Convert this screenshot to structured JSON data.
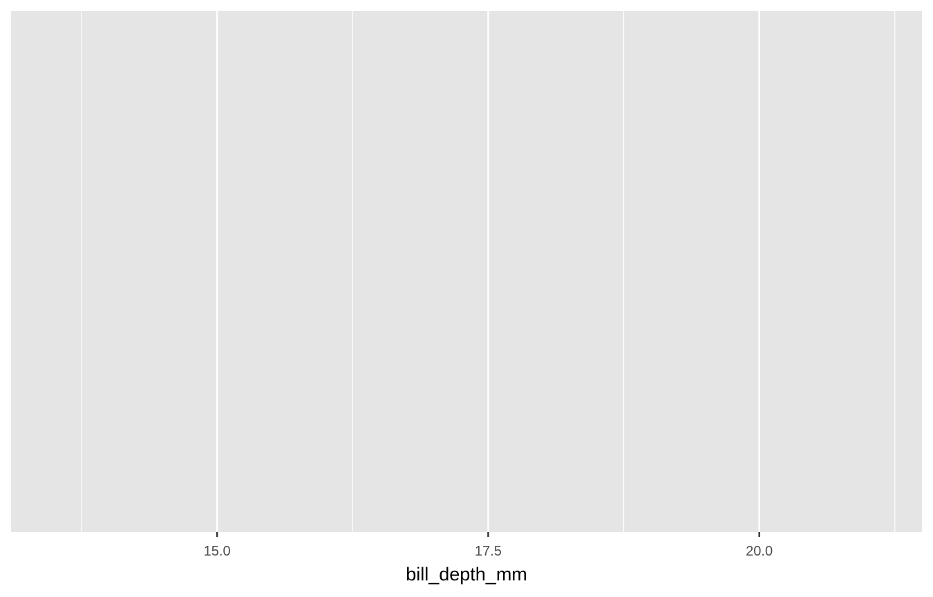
{
  "chart_data": {
    "type": "scatter",
    "title": "",
    "xlabel": "bill_depth_mm",
    "ylabel": "",
    "xlim": [
      13.1,
      21.5
    ],
    "x_ticks": [
      15.0,
      17.5,
      20.0
    ],
    "x_tick_labels": [
      "15.0",
      "17.5",
      "20.0"
    ],
    "x_minor_ticks": [
      13.75,
      16.25,
      18.75,
      21.25
    ],
    "y_ticks": [],
    "grid": true,
    "legend": "none",
    "series": [],
    "colors": {
      "panel_background": "#e5e5e5",
      "grid_major": "#ffffff",
      "tick_mark": "#333333",
      "tick_label": "#4d4d4d",
      "axis_title": "#000000"
    }
  }
}
